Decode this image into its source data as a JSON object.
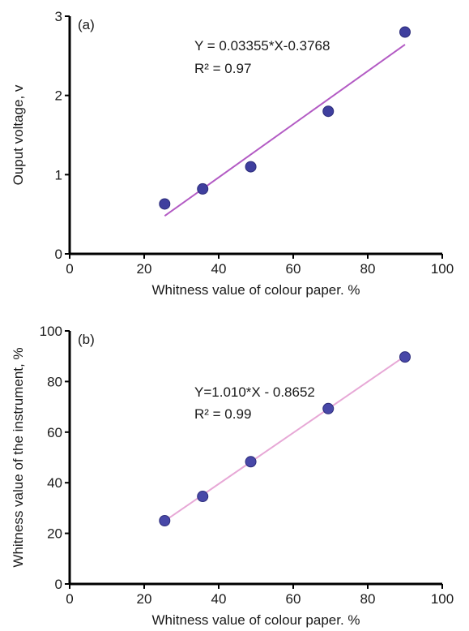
{
  "chart_data": [
    {
      "type": "scatter",
      "panel_label": "(a)",
      "xlabel": "Whitness value of colour paper. %",
      "ylabel": "Ouput voltage, v",
      "xlim": [
        0,
        100
      ],
      "ylim": [
        0,
        3
      ],
      "xticks": [
        0,
        20,
        40,
        60,
        80,
        100
      ],
      "yticks": [
        0,
        1,
        2,
        3
      ],
      "grid": false,
      "points": [
        {
          "x": 25.5,
          "y": 0.63
        },
        {
          "x": 35.7,
          "y": 0.82
        },
        {
          "x": 48.6,
          "y": 1.1
        },
        {
          "x": 69.4,
          "y": 1.8
        },
        {
          "x": 90.0,
          "y": 2.8
        }
      ],
      "fit": {
        "x1": 25.5,
        "x2": 90.0,
        "slope": 0.03355,
        "intercept": -0.3768
      },
      "annotations": [
        "Y = 0.03355*X-0.3768",
        "R² = 0.97"
      ],
      "colors": {
        "marker": "#3f3f9e",
        "fit_line": "#b35bc4"
      }
    },
    {
      "type": "scatter",
      "panel_label": "(b)",
      "xlabel": "Whitness value of colour paper. %",
      "ylabel": "Whitness value of the instrument, %",
      "xlim": [
        0,
        100
      ],
      "ylim": [
        0,
        100
      ],
      "xticks": [
        0,
        20,
        40,
        60,
        80,
        100
      ],
      "yticks": [
        0,
        20,
        40,
        60,
        80,
        100
      ],
      "grid": false,
      "points": [
        {
          "x": 25.5,
          "y": 25.0
        },
        {
          "x": 35.7,
          "y": 34.6
        },
        {
          "x": 48.6,
          "y": 48.3
        },
        {
          "x": 69.4,
          "y": 69.3
        },
        {
          "x": 90.0,
          "y": 89.7
        }
      ],
      "fit": {
        "x1": 25.5,
        "x2": 90.0,
        "slope": 1.01,
        "intercept": -0.8652
      },
      "annotations": [
        "Y=1.010*X - 0.8652",
        "R² = 0.99"
      ],
      "colors": {
        "marker": "#4848a8",
        "fit_line": "#e7a8d6"
      }
    }
  ]
}
